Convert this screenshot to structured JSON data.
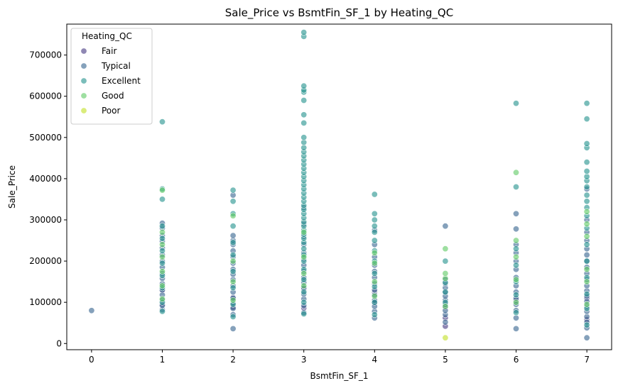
{
  "chart_data": {
    "type": "scatter",
    "title": "Sale_Price vs BsmtFin_SF_1 by Heating_QC",
    "xlabel": "BsmtFin_SF_1",
    "ylabel": "Sale_Price",
    "xlim": [
      -0.35,
      7.35
    ],
    "ylim": [
      -15000,
      775000
    ],
    "x_ticks": [
      0,
      1,
      2,
      3,
      4,
      5,
      6,
      7
    ],
    "y_ticks": [
      0,
      100000,
      200000,
      300000,
      400000,
      500000,
      600000,
      700000
    ],
    "grid": false,
    "legend": {
      "title": "Heating_QC",
      "placement": "top-left",
      "entries": [
        "Fair",
        "Typical",
        "Excellent",
        "Good",
        "Poor"
      ]
    },
    "series": [
      {
        "name": "Fair",
        "color": "#453781",
        "points": [
          [
            1,
            95000
          ],
          [
            1,
            128000
          ],
          [
            2,
            88000
          ],
          [
            2,
            112000
          ],
          [
            3,
            86000
          ],
          [
            3,
            132000
          ],
          [
            4,
            98000
          ],
          [
            4,
            125000
          ],
          [
            5,
            42000
          ],
          [
            5,
            62000
          ],
          [
            5,
            88000
          ],
          [
            6,
            105000
          ],
          [
            7,
            58000
          ],
          [
            7,
            110000
          ]
        ]
      },
      {
        "name": "Typical",
        "color": "#33638d",
        "points": [
          [
            0,
            80000
          ],
          [
            1,
            82000
          ],
          [
            1,
            92000
          ],
          [
            1,
            105000
          ],
          [
            1,
            118000
          ],
          [
            1,
            130000
          ],
          [
            1,
            145000
          ],
          [
            1,
            158000
          ],
          [
            1,
            170000
          ],
          [
            1,
            185000
          ],
          [
            1,
            200000
          ],
          [
            1,
            215000
          ],
          [
            1,
            232000
          ],
          [
            1,
            248000
          ],
          [
            1,
            262000
          ],
          [
            1,
            280000
          ],
          [
            1,
            292000
          ],
          [
            2,
            36000
          ],
          [
            2,
            70000
          ],
          [
            2,
            85000
          ],
          [
            2,
            98000
          ],
          [
            2,
            110000
          ],
          [
            2,
            125000
          ],
          [
            2,
            140000
          ],
          [
            2,
            155000
          ],
          [
            2,
            168000
          ],
          [
            2,
            180000
          ],
          [
            2,
            195000
          ],
          [
            2,
            210000
          ],
          [
            2,
            225000
          ],
          [
            2,
            240000
          ],
          [
            2,
            250000
          ],
          [
            2,
            262000
          ],
          [
            2,
            360000
          ],
          [
            3,
            75000
          ],
          [
            3,
            92000
          ],
          [
            3,
            108000
          ],
          [
            3,
            120000
          ],
          [
            3,
            135000
          ],
          [
            3,
            148000
          ],
          [
            3,
            160000
          ],
          [
            3,
            175000
          ],
          [
            3,
            190000
          ],
          [
            3,
            205000
          ],
          [
            3,
            220000
          ],
          [
            3,
            240000
          ],
          [
            3,
            260000
          ],
          [
            3,
            290000
          ],
          [
            3,
            330000
          ],
          [
            4,
            62000
          ],
          [
            4,
            78000
          ],
          [
            4,
            90000
          ],
          [
            4,
            105000
          ],
          [
            4,
            118000
          ],
          [
            4,
            130000
          ],
          [
            4,
            145000
          ],
          [
            4,
            160000
          ],
          [
            4,
            175000
          ],
          [
            4,
            190000
          ],
          [
            4,
            210000
          ],
          [
            4,
            240000
          ],
          [
            4,
            275000
          ],
          [
            5,
            52000
          ],
          [
            5,
            70000
          ],
          [
            5,
            80000
          ],
          [
            5,
            95000
          ],
          [
            5,
            105000
          ],
          [
            5,
            115000
          ],
          [
            5,
            125000
          ],
          [
            5,
            135000
          ],
          [
            5,
            145000
          ],
          [
            5,
            155000
          ],
          [
            5,
            285000
          ],
          [
            6,
            36000
          ],
          [
            6,
            62000
          ],
          [
            6,
            80000
          ],
          [
            6,
            95000
          ],
          [
            6,
            110000
          ],
          [
            6,
            125000
          ],
          [
            6,
            140000
          ],
          [
            6,
            160000
          ],
          [
            6,
            180000
          ],
          [
            6,
            200000
          ],
          [
            6,
            220000
          ],
          [
            6,
            240000
          ],
          [
            6,
            278000
          ],
          [
            6,
            315000
          ],
          [
            7,
            14000
          ],
          [
            7,
            38000
          ],
          [
            7,
            52000
          ],
          [
            7,
            65000
          ],
          [
            7,
            78000
          ],
          [
            7,
            90000
          ],
          [
            7,
            102000
          ],
          [
            7,
            115000
          ],
          [
            7,
            128000
          ],
          [
            7,
            140000
          ],
          [
            7,
            155000
          ],
          [
            7,
            170000
          ],
          [
            7,
            185000
          ],
          [
            7,
            200000
          ],
          [
            7,
            215000
          ],
          [
            7,
            230000
          ],
          [
            7,
            250000
          ],
          [
            7,
            270000
          ],
          [
            7,
            300000
          ],
          [
            7,
            375000
          ]
        ]
      },
      {
        "name": "Excellent",
        "color": "#21918c",
        "points": [
          [
            1,
            78000
          ],
          [
            1,
            100000
          ],
          [
            1,
            135000
          ],
          [
            1,
            165000
          ],
          [
            1,
            195000
          ],
          [
            1,
            225000
          ],
          [
            1,
            255000
          ],
          [
            1,
            285000
          ],
          [
            1,
            350000
          ],
          [
            1,
            375000
          ],
          [
            1,
            538000
          ],
          [
            2,
            65000
          ],
          [
            2,
            95000
          ],
          [
            2,
            135000
          ],
          [
            2,
            175000
          ],
          [
            2,
            215000
          ],
          [
            2,
            245000
          ],
          [
            2,
            285000
          ],
          [
            2,
            315000
          ],
          [
            2,
            345000
          ],
          [
            2,
            372000
          ],
          [
            3,
            72000
          ],
          [
            3,
            100000
          ],
          [
            3,
            125000
          ],
          [
            3,
            155000
          ],
          [
            3,
            180000
          ],
          [
            3,
            200000
          ],
          [
            3,
            215000
          ],
          [
            3,
            230000
          ],
          [
            3,
            245000
          ],
          [
            3,
            255000
          ],
          [
            3,
            265000
          ],
          [
            3,
            275000
          ],
          [
            3,
            285000
          ],
          [
            3,
            295000
          ],
          [
            3,
            305000
          ],
          [
            3,
            315000
          ],
          [
            3,
            325000
          ],
          [
            3,
            335000
          ],
          [
            3,
            345000
          ],
          [
            3,
            355000
          ],
          [
            3,
            365000
          ],
          [
            3,
            375000
          ],
          [
            3,
            385000
          ],
          [
            3,
            395000
          ],
          [
            3,
            405000
          ],
          [
            3,
            415000
          ],
          [
            3,
            425000
          ],
          [
            3,
            435000
          ],
          [
            3,
            445000
          ],
          [
            3,
            455000
          ],
          [
            3,
            465000
          ],
          [
            3,
            475000
          ],
          [
            3,
            488000
          ],
          [
            3,
            500000
          ],
          [
            3,
            535000
          ],
          [
            3,
            555000
          ],
          [
            3,
            590000
          ],
          [
            3,
            610000
          ],
          [
            3,
            615000
          ],
          [
            3,
            625000
          ],
          [
            3,
            745000
          ],
          [
            3,
            755000
          ],
          [
            4,
            70000
          ],
          [
            4,
            100000
          ],
          [
            4,
            138000
          ],
          [
            4,
            170000
          ],
          [
            4,
            200000
          ],
          [
            4,
            225000
          ],
          [
            4,
            250000
          ],
          [
            4,
            270000
          ],
          [
            4,
            285000
          ],
          [
            4,
            300000
          ],
          [
            4,
            315000
          ],
          [
            4,
            362000
          ],
          [
            5,
            100000
          ],
          [
            5,
            125000
          ],
          [
            5,
            148000
          ],
          [
            5,
            200000
          ],
          [
            6,
            75000
          ],
          [
            6,
            118000
          ],
          [
            6,
            150000
          ],
          [
            6,
            190000
          ],
          [
            6,
            230000
          ],
          [
            6,
            380000
          ],
          [
            6,
            583000
          ],
          [
            7,
            45000
          ],
          [
            7,
            85000
          ],
          [
            7,
            120000
          ],
          [
            7,
            160000
          ],
          [
            7,
            200000
          ],
          [
            7,
            240000
          ],
          [
            7,
            280000
          ],
          [
            7,
            310000
          ],
          [
            7,
            330000
          ],
          [
            7,
            345000
          ],
          [
            7,
            360000
          ],
          [
            7,
            380000
          ],
          [
            7,
            395000
          ],
          [
            7,
            405000
          ],
          [
            7,
            418000
          ],
          [
            7,
            440000
          ],
          [
            7,
            475000
          ],
          [
            7,
            485000
          ],
          [
            7,
            545000
          ],
          [
            7,
            583000
          ]
        ]
      },
      {
        "name": "Good",
        "color": "#5ec962",
        "points": [
          [
            1,
            108000
          ],
          [
            1,
            140000
          ],
          [
            1,
            175000
          ],
          [
            1,
            210000
          ],
          [
            1,
            240000
          ],
          [
            1,
            270000
          ],
          [
            1,
            372000
          ],
          [
            2,
            105000
          ],
          [
            2,
            150000
          ],
          [
            2,
            200000
          ],
          [
            2,
            310000
          ],
          [
            3,
            140000
          ],
          [
            3,
            170000
          ],
          [
            3,
            210000
          ],
          [
            3,
            270000
          ],
          [
            4,
            115000
          ],
          [
            4,
            150000
          ],
          [
            4,
            195000
          ],
          [
            4,
            220000
          ],
          [
            5,
            90000
          ],
          [
            5,
            158000
          ],
          [
            5,
            170000
          ],
          [
            5,
            230000
          ],
          [
            6,
            100000
          ],
          [
            6,
            155000
          ],
          [
            6,
            210000
          ],
          [
            6,
            250000
          ],
          [
            6,
            415000
          ],
          [
            7,
            95000
          ],
          [
            7,
            150000
          ],
          [
            7,
            180000
          ],
          [
            7,
            260000
          ],
          [
            7,
            290000
          ],
          [
            7,
            320000
          ]
        ]
      },
      {
        "name": "Poor",
        "color": "#c2df23",
        "points": [
          [
            5,
            14000
          ]
        ]
      }
    ]
  }
}
